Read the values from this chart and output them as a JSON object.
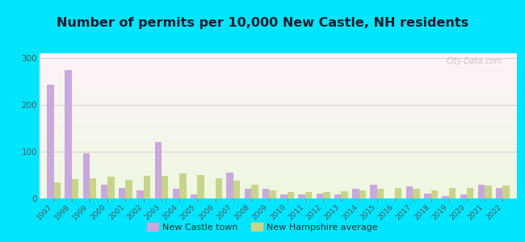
{
  "title": "Number of permits per 10,000 New Castle, NH residents",
  "years": [
    1997,
    1998,
    1999,
    2000,
    2001,
    2002,
    2003,
    2004,
    2005,
    2006,
    2007,
    2008,
    2009,
    2010,
    2011,
    2012,
    2013,
    2014,
    2015,
    2016,
    2017,
    2018,
    2019,
    2020,
    2021,
    2022
  ],
  "new_castle": [
    242,
    274,
    96,
    30,
    22,
    18,
    120,
    20,
    9,
    0,
    55,
    20,
    20,
    8,
    8,
    10,
    8,
    20,
    30,
    0,
    25,
    10,
    5,
    8,
    30,
    22
  ],
  "nh_average": [
    35,
    42,
    43,
    47,
    40,
    48,
    48,
    53,
    50,
    43,
    38,
    30,
    18,
    13,
    13,
    13,
    15,
    18,
    20,
    22,
    20,
    18,
    22,
    22,
    28,
    28
  ],
  "castle_color": "#c9a8dc",
  "nh_color": "#c8d48a",
  "outer_bg": "#00e5ff",
  "title_color": "#1a1a2e",
  "ylim": [
    0,
    310
  ],
  "yticks": [
    0,
    100,
    200,
    300
  ],
  "bar_width": 0.38,
  "legend_label_castle": "New Castle town",
  "legend_label_nh": "New Hampshire average",
  "watermark": "City-Data.com",
  "title_fontsize": 11.5
}
